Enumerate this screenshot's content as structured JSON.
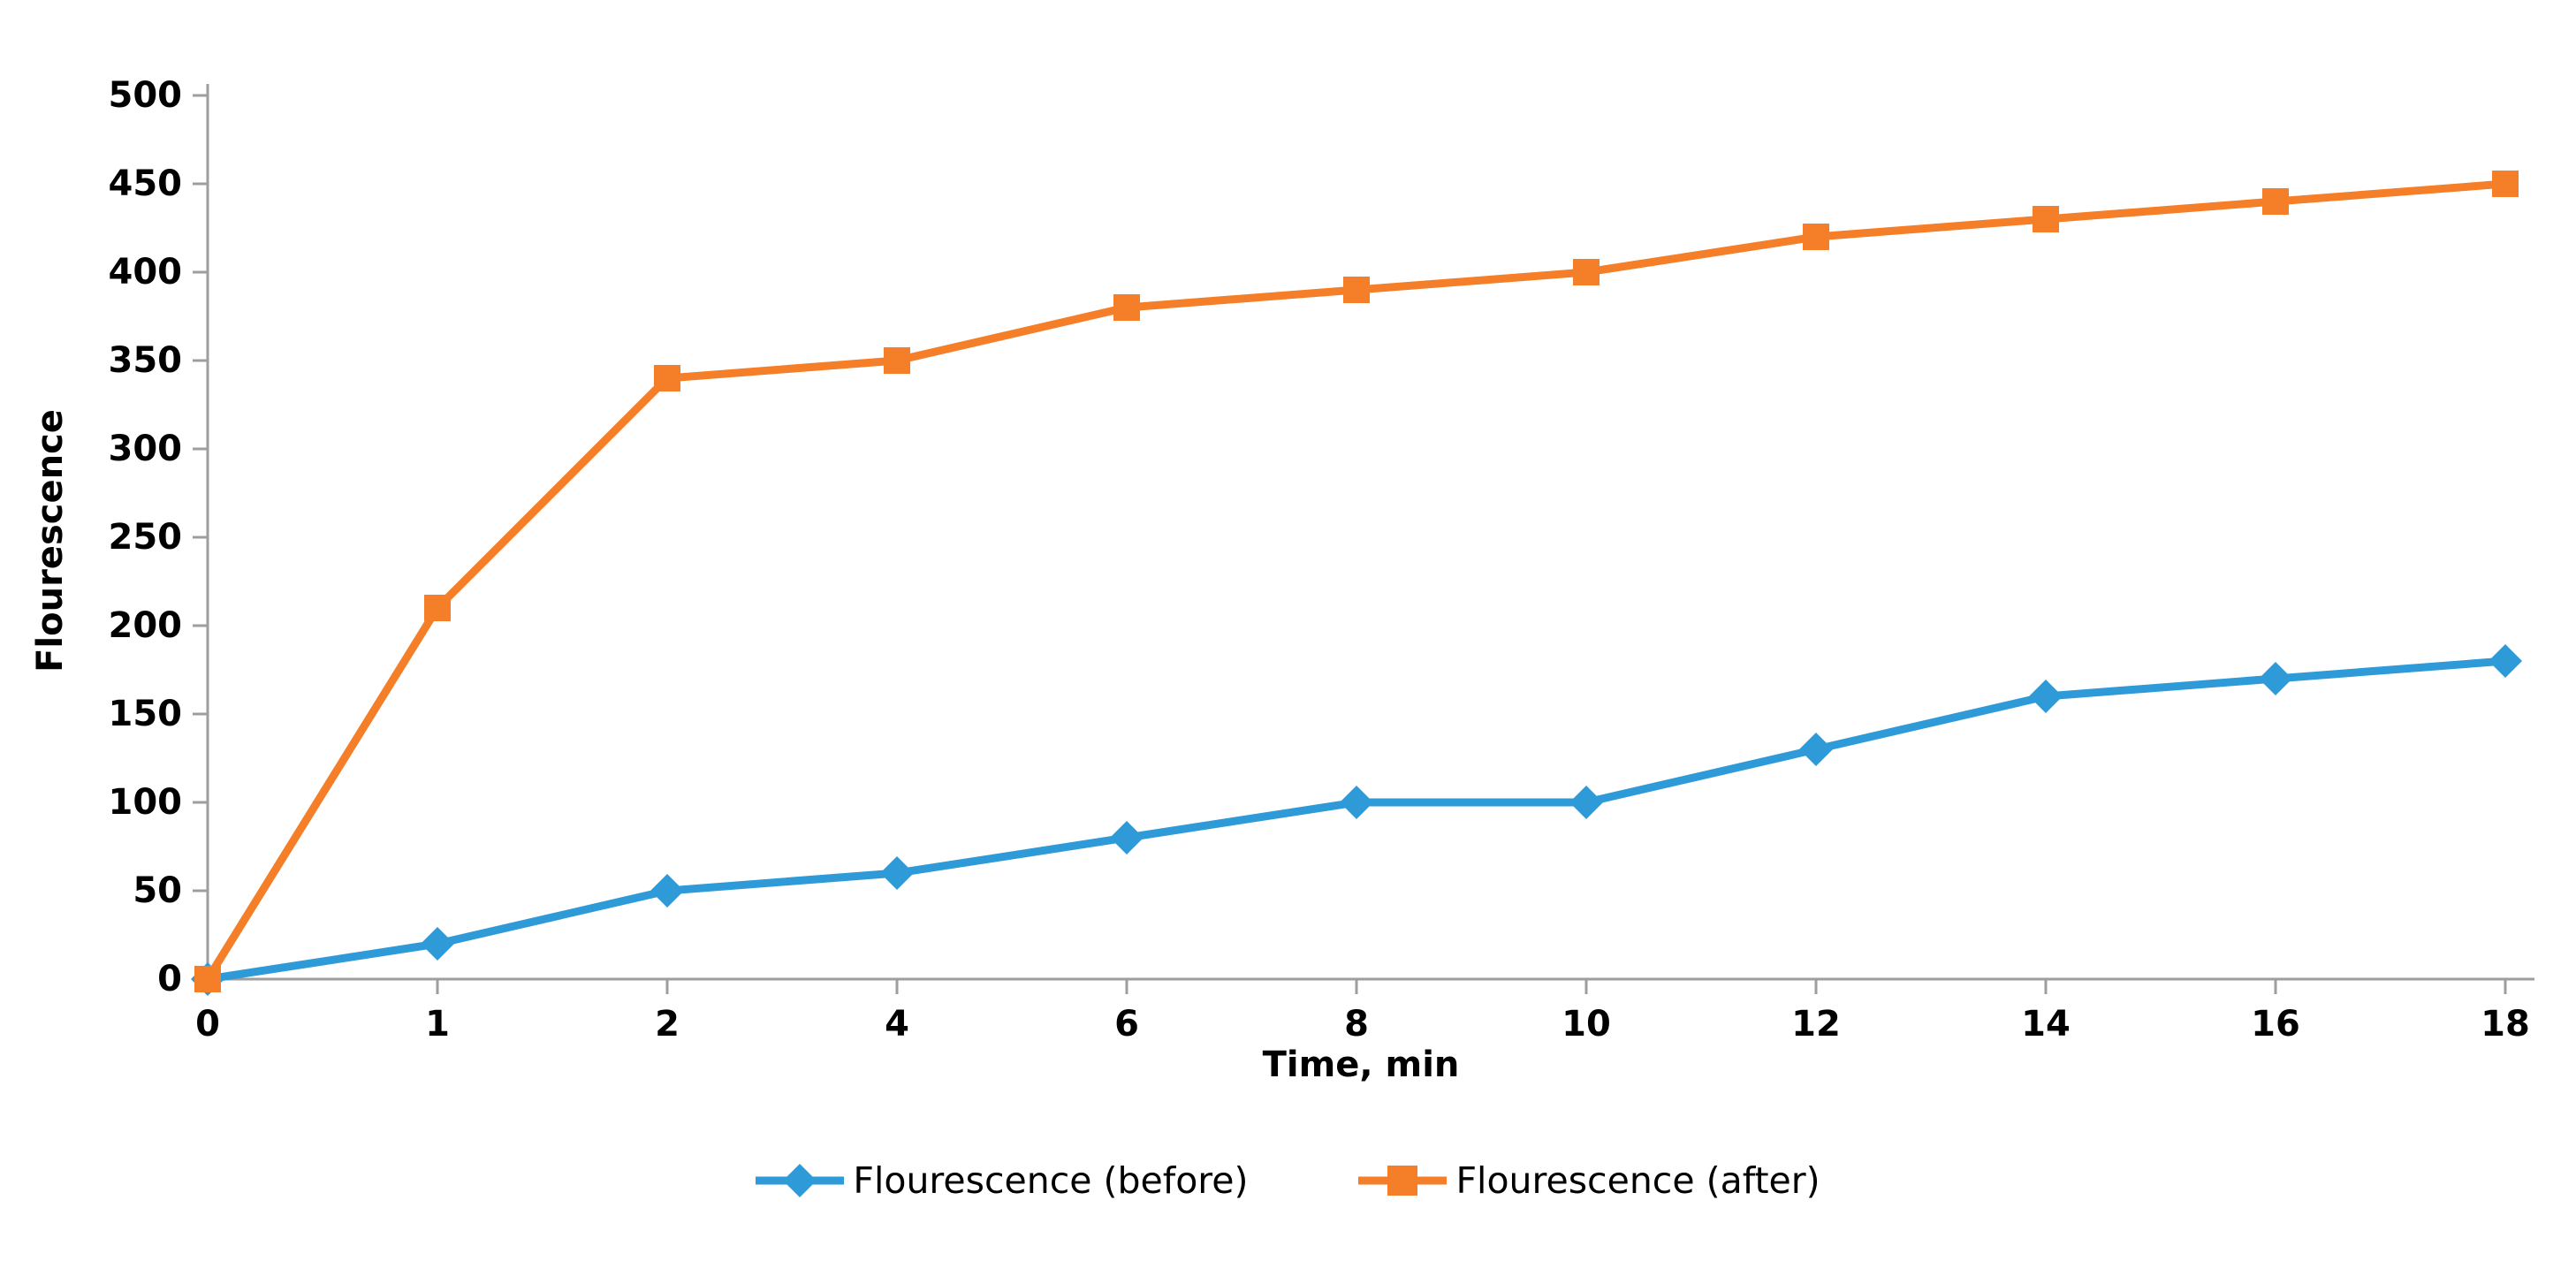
{
  "chart_data": {
    "type": "line",
    "categories": [
      "0",
      "1",
      "2",
      "4",
      "6",
      "8",
      "10",
      "12",
      "14",
      "16",
      "18"
    ],
    "series": [
      {
        "name": "Flourescence (before)",
        "color": "#2E9AD8",
        "marker": "diamond",
        "values": [
          0,
          20,
          50,
          60,
          80,
          100,
          100,
          130,
          160,
          170,
          180
        ]
      },
      {
        "name": "Flourescence (after)",
        "color": "#F57E28",
        "marker": "square",
        "values": [
          0,
          210,
          340,
          350,
          380,
          390,
          400,
          420,
          430,
          440,
          450
        ]
      }
    ],
    "title": "",
    "xlabel": "Time, min",
    "ylabel": "Flourescence",
    "ylim": [
      0,
      500
    ],
    "ytick_step": 50,
    "yticks": [
      0,
      50,
      100,
      150,
      200,
      250,
      300,
      350,
      400,
      450,
      500
    ],
    "grid": false,
    "legend_position": "bottom",
    "axis_color": "#9E9E9E",
    "text_color": "#000000",
    "background_color": "#FFFFFF"
  }
}
